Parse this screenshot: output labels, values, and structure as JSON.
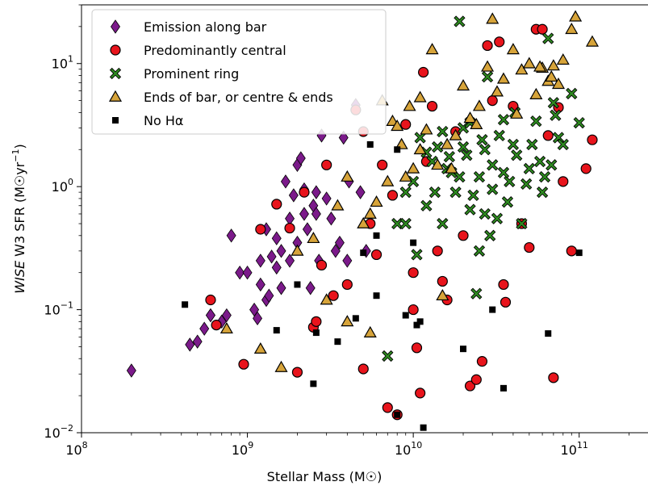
{
  "chart_data": {
    "type": "scatter",
    "x_scale": "log",
    "y_scale": "log",
    "xlim": [
      100000000.0,
      260000000000.0
    ],
    "ylim": [
      0.01,
      30
    ],
    "xlabel": "Stellar Mass (M☉)",
    "ylabel_italic": "WISE",
    "ylabel_rest": " W3 SFR (M☉yr",
    "ylabel_sup": "−1",
    "ylabel_close": ")",
    "x_ticks": [
      {
        "value": 100000000.0,
        "base": "10",
        "exp": "8"
      },
      {
        "value": 1000000000.0,
        "base": "10",
        "exp": "9"
      },
      {
        "value": 10000000000.0,
        "base": "10",
        "exp": "10"
      },
      {
        "value": 100000000000.0,
        "base": "10",
        "exp": "11"
      }
    ],
    "y_ticks": [
      {
        "value": 0.01,
        "base": "10",
        "exp": "−2"
      },
      {
        "value": 0.1,
        "base": "10",
        "exp": "−1"
      },
      {
        "value": 1,
        "base": "10",
        "exp": "0"
      },
      {
        "value": 10,
        "base": "10",
        "exp": "1"
      }
    ],
    "grid": false,
    "legend_position": "top-left",
    "series": [
      {
        "name": "Emission along bar",
        "marker": "thin_diamond",
        "color": "#7b1a8a",
        "points": [
          [
            200000000.0,
            0.032
          ],
          [
            450000000.0,
            0.052
          ],
          [
            500000000.0,
            0.055
          ],
          [
            550000000.0,
            0.07
          ],
          [
            600000000.0,
            0.09
          ],
          [
            750000000.0,
            0.09
          ],
          [
            800000000.0,
            0.4
          ],
          [
            900000000.0,
            0.2
          ],
          [
            1000000000.0,
            0.2
          ],
          [
            1100000000.0,
            0.1
          ],
          [
            1200000000.0,
            0.16
          ],
          [
            1300000000.0,
            0.45
          ],
          [
            1400000000.0,
            0.27
          ],
          [
            1500000000.0,
            0.22
          ],
          [
            1500000000.0,
            0.38
          ],
          [
            1600000000.0,
            0.15
          ],
          [
            1600000000.0,
            0.3
          ],
          [
            1700000000.0,
            1.1
          ],
          [
            1800000000.0,
            0.55
          ],
          [
            1900000000.0,
            0.85
          ],
          [
            2000000000.0,
            1.5
          ],
          [
            2000000000.0,
            0.35
          ],
          [
            2100000000.0,
            1.7
          ],
          [
            2200000000.0,
            0.6
          ],
          [
            2300000000.0,
            0.45
          ],
          [
            2400000000.0,
            0.15
          ],
          [
            2500000000.0,
            0.7
          ],
          [
            2600000000.0,
            0.9
          ],
          [
            2700000000.0,
            0.25
          ],
          [
            2800000000.0,
            2.6
          ],
          [
            3000000000.0,
            0.8
          ],
          [
            3200000000.0,
            0.55
          ],
          [
            3400000000.0,
            0.3
          ],
          [
            3600000000.0,
            0.35
          ],
          [
            3800000000.0,
            2.5
          ],
          [
            4000000000.0,
            0.25
          ],
          [
            4500000000.0,
            4.6
          ],
          [
            4800000000.0,
            0.9
          ],
          [
            5200000000.0,
            0.3
          ],
          [
            1200000000.0,
            0.25
          ],
          [
            1300000000.0,
            0.12
          ],
          [
            1800000000.0,
            0.25
          ],
          [
            2200000000.0,
            0.95
          ],
          [
            2600000000.0,
            0.6
          ],
          [
            4100000000.0,
            1.1
          ],
          [
            600000000.0,
            0.09
          ],
          [
            700000000.0,
            0.08
          ],
          [
            1150000000.0,
            0.085
          ],
          [
            1350000000.0,
            0.13
          ]
        ]
      },
      {
        "name": "Predominantly central",
        "marker": "circle",
        "color": "#e8141c",
        "points": [
          [
            600000000.0,
            0.12
          ],
          [
            650000000.0,
            0.075
          ],
          [
            950000000.0,
            0.036
          ],
          [
            1200000000.0,
            0.45
          ],
          [
            1500000000.0,
            0.72
          ],
          [
            1800000000.0,
            0.46
          ],
          [
            2000000000.0,
            0.031
          ],
          [
            2200000000.0,
            0.9
          ],
          [
            2500000000.0,
            0.072
          ],
          [
            2600000000.0,
            0.08
          ],
          [
            2800000000.0,
            0.23
          ],
          [
            3000000000.0,
            1.5
          ],
          [
            3300000000.0,
            0.13
          ],
          [
            4000000000.0,
            0.16
          ],
          [
            4500000000.0,
            4.2
          ],
          [
            5000000000.0,
            2.8
          ],
          [
            5000000000.0,
            0.033
          ],
          [
            5500000000.0,
            0.5
          ],
          [
            6000000000.0,
            0.28
          ],
          [
            6500000000.0,
            1.5
          ],
          [
            7000000000.0,
            0.016
          ],
          [
            7500000000.0,
            0.85
          ],
          [
            8000000000.0,
            0.014
          ],
          [
            9000000000.0,
            3.2
          ],
          [
            10000000000.0,
            0.2
          ],
          [
            10000000000.0,
            0.1
          ],
          [
            10500000000.0,
            0.049
          ],
          [
            11000000000.0,
            0.021
          ],
          [
            11500000000.0,
            8.5
          ],
          [
            12000000000.0,
            1.6
          ],
          [
            13000000000.0,
            4.5
          ],
          [
            14000000000.0,
            0.3
          ],
          [
            15000000000.0,
            0.17
          ],
          [
            16000000000.0,
            0.12
          ],
          [
            18000000000.0,
            2.8
          ],
          [
            20000000000.0,
            0.4
          ],
          [
            22000000000.0,
            0.024
          ],
          [
            24000000000.0,
            0.027
          ],
          [
            26000000000.0,
            0.038
          ],
          [
            28000000000.0,
            14
          ],
          [
            30000000000.0,
            5
          ],
          [
            33000000000.0,
            15
          ],
          [
            35000000000.0,
            0.16
          ],
          [
            36000000000.0,
            0.115
          ],
          [
            40000000000.0,
            4.5
          ],
          [
            45000000000.0,
            0.5
          ],
          [
            50000000000.0,
            0.32
          ],
          [
            55000000000.0,
            19
          ],
          [
            60000000000.0,
            19
          ],
          [
            65000000000.0,
            2.6
          ],
          [
            70000000000.0,
            0.028
          ],
          [
            75000000000.0,
            4.4
          ],
          [
            90000000000.0,
            0.3
          ],
          [
            110000000000.0,
            1.4
          ],
          [
            120000000000.0,
            2.4
          ],
          [
            80000000000.0,
            1.1
          ]
        ]
      },
      {
        "name": "Prominent ring",
        "marker": "x_filled",
        "color": "#2e8b20",
        "points": [
          [
            7000000000.0,
            0.042
          ],
          [
            8000000000.0,
            0.5
          ],
          [
            9000000000.0,
            0.5
          ],
          [
            10000000000.0,
            1.1
          ],
          [
            11000000000.0,
            2.5
          ],
          [
            12000000000.0,
            0.7
          ],
          [
            13000000000.0,
            1.6
          ],
          [
            14000000000.0,
            2.1
          ],
          [
            15000000000.0,
            0.5
          ],
          [
            16000000000.0,
            1.4
          ],
          [
            18000000000.0,
            0.9
          ],
          [
            19000000000.0,
            22
          ],
          [
            20000000000.0,
            3
          ],
          [
            22000000000.0,
            0.65
          ],
          [
            24000000000.0,
            0.135
          ],
          [
            25000000000.0,
            1.2
          ],
          [
            26000000000.0,
            2.4
          ],
          [
            28000000000.0,
            7.8
          ],
          [
            30000000000.0,
            1.5
          ],
          [
            32000000000.0,
            0.55
          ],
          [
            35000000000.0,
            3.5
          ],
          [
            38000000000.0,
            1.1
          ],
          [
            40000000000.0,
            2.2
          ],
          [
            45000000000.0,
            0.5
          ],
          [
            50000000000.0,
            1.4
          ],
          [
            55000000000.0,
            3.4
          ],
          [
            60000000000.0,
            0.9
          ],
          [
            65000000000.0,
            16
          ],
          [
            70000000000.0,
            4.8
          ],
          [
            75000000000.0,
            2.5
          ],
          [
            80000000000.0,
            2.2
          ],
          [
            90000000000.0,
            5.7
          ],
          [
            100000000000.0,
            3.3
          ],
          [
            12000000000.0,
            1.9
          ],
          [
            15000000000.0,
            2.8
          ],
          [
            17000000000.0,
            1.3
          ],
          [
            21000000000.0,
            1.8
          ],
          [
            23000000000.0,
            0.85
          ],
          [
            27000000000.0,
            2
          ],
          [
            29000000000.0,
            0.4
          ],
          [
            33000000000.0,
            2.6
          ],
          [
            37000000000.0,
            0.75
          ],
          [
            42000000000.0,
            1.8
          ],
          [
            48000000000.0,
            1.05
          ],
          [
            52000000000.0,
            2.2
          ],
          [
            58000000000.0,
            1.6
          ],
          [
            62000000000.0,
            1.2
          ],
          [
            68000000000.0,
            1.5
          ],
          [
            72000000000.0,
            3.8
          ],
          [
            10500000000.0,
            0.28
          ],
          [
            13500000000.0,
            0.9
          ],
          [
            16500000000.0,
            1.75
          ],
          [
            20000000000.0,
            2.1
          ],
          [
            25000000000.0,
            0.3
          ],
          [
            30000000000.0,
            0.95
          ],
          [
            9000000000.0,
            0.9
          ],
          [
            19000000000.0,
            1.2
          ],
          [
            22000000000.0,
            3.3
          ],
          [
            27000000000.0,
            0.6
          ],
          [
            35000000000.0,
            1.3
          ],
          [
            41000000000.0,
            4
          ]
        ]
      },
      {
        "name": "Ends of bar, or centre & ends",
        "marker": "triangle",
        "color": "#d7a43a",
        "points": [
          [
            750000000.0,
            0.07
          ],
          [
            1200000000.0,
            0.048
          ],
          [
            1600000000.0,
            0.034
          ],
          [
            2000000000.0,
            0.3
          ],
          [
            2500000000.0,
            0.38
          ],
          [
            3000000000.0,
            0.12
          ],
          [
            3500000000.0,
            0.7
          ],
          [
            4000000000.0,
            1.2
          ],
          [
            5000000000.0,
            0.5
          ],
          [
            5500000000.0,
            0.6
          ],
          [
            6000000000.0,
            0.75
          ],
          [
            6500000000.0,
            5
          ],
          [
            7000000000.0,
            1.1
          ],
          [
            7500000000.0,
            3.4
          ],
          [
            8000000000.0,
            3.1
          ],
          [
            8500000000.0,
            2.2
          ],
          [
            9000000000.0,
            1.2
          ],
          [
            9500000000.0,
            4.5
          ],
          [
            10000000000.0,
            1.4
          ],
          [
            11000000000.0,
            5.3
          ],
          [
            12000000000.0,
            2.9
          ],
          [
            13000000000.0,
            13
          ],
          [
            14000000000.0,
            1.5
          ],
          [
            15000000000.0,
            0.13
          ],
          [
            16000000000.0,
            2.2
          ],
          [
            18000000000.0,
            2.6
          ],
          [
            20000000000.0,
            6.6
          ],
          [
            22000000000.0,
            3.6
          ],
          [
            25000000000.0,
            4.5
          ],
          [
            28000000000.0,
            9.4
          ],
          [
            30000000000.0,
            23
          ],
          [
            35000000000.0,
            7.5
          ],
          [
            40000000000.0,
            13
          ],
          [
            45000000000.0,
            8.9
          ],
          [
            50000000000.0,
            10
          ],
          [
            55000000000.0,
            5.6
          ],
          [
            60000000000.0,
            9.2
          ],
          [
            65000000000.0,
            7.2
          ],
          [
            70000000000.0,
            9.6
          ],
          [
            75000000000.0,
            6.8
          ],
          [
            80000000000.0,
            10.7
          ],
          [
            90000000000.0,
            19
          ],
          [
            95000000000.0,
            24
          ],
          [
            120000000000.0,
            15
          ],
          [
            11000000000.0,
            2
          ],
          [
            17000000000.0,
            1.4
          ],
          [
            24000000000.0,
            3.2
          ],
          [
            32000000000.0,
            5.9
          ],
          [
            42000000000.0,
            3.9
          ],
          [
            58000000000.0,
            9.4
          ],
          [
            68000000000.0,
            7.8
          ],
          [
            4000000000.0,
            0.08
          ],
          [
            5500000000.0,
            0.065
          ]
        ]
      },
      {
        "name": "No Hα",
        "marker": "square",
        "color": "#000000",
        "points": [
          [
            420000000.0,
            0.11
          ],
          [
            1500000000.0,
            0.068
          ],
          [
            2000000000.0,
            0.16
          ],
          [
            2500000000.0,
            0.025
          ],
          [
            2600000000.0,
            0.065
          ],
          [
            3500000000.0,
            0.055
          ],
          [
            4500000000.0,
            0.085
          ],
          [
            5000000000.0,
            0.29
          ],
          [
            5500000000.0,
            2.2
          ],
          [
            6000000000.0,
            0.4
          ],
          [
            8000000000.0,
            0.014
          ],
          [
            9000000000.0,
            0.09
          ],
          [
            10000000000.0,
            0.35
          ],
          [
            10500000000.0,
            0.075
          ],
          [
            11000000000.0,
            0.08
          ],
          [
            11500000000.0,
            0.011
          ],
          [
            20000000000.0,
            0.048
          ],
          [
            30000000000.0,
            0.1
          ],
          [
            35000000000.0,
            0.023
          ],
          [
            65000000000.0,
            0.064
          ],
          [
            100000000000.0,
            0.29
          ],
          [
            8000000000.0,
            2
          ],
          [
            6000000000.0,
            0.13
          ]
        ]
      }
    ]
  }
}
